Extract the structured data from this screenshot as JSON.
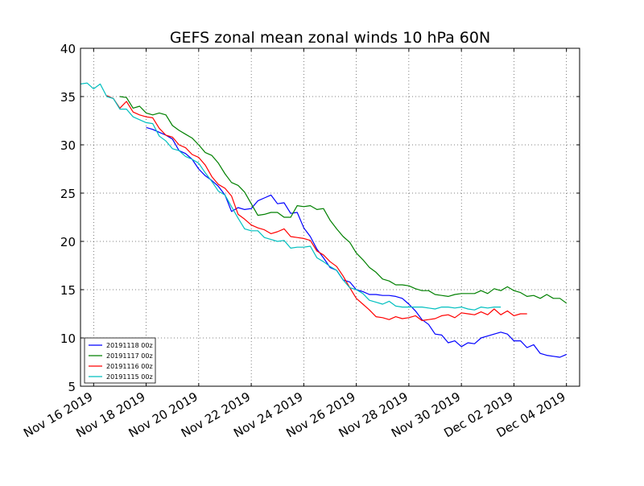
{
  "chart_data": {
    "type": "line",
    "title": "GEFS zonal mean zonal winds 10 hPa 60N",
    "xlabel": "",
    "ylabel": "",
    "ylim": [
      5,
      40
    ],
    "xlim": [
      "2019-11-15 12:00",
      "2019-12-04 12:00"
    ],
    "x_ticks": [
      "Nov 16 2019",
      "Nov 18 2019",
      "Nov 20 2019",
      "Nov 22 2019",
      "Nov 24 2019",
      "Nov 26 2019",
      "Nov 28 2019",
      "Nov 30 2019",
      "Dec 02 2019",
      "Dec 04 2019"
    ],
    "y_ticks": [
      5,
      10,
      15,
      20,
      25,
      30,
      35,
      40
    ],
    "grid": true,
    "legend_position": "lower-left",
    "series": [
      {
        "name": "20191118 00z",
        "color": "#0000ff",
        "start": "2019-11-18 00:00",
        "step_hours": 6,
        "values": [
          31.8,
          31.6,
          31.3,
          31.0,
          30.6,
          29.4,
          29.1,
          28.5,
          27.5,
          26.8,
          26.3,
          25.7,
          24.8,
          23.1,
          23.5,
          23.3,
          23.4,
          24.2,
          24.5,
          24.8,
          23.9,
          24.0,
          22.9,
          23.0,
          21.4,
          20.5,
          19.2,
          18.3,
          17.3,
          17.0,
          16.0,
          15.8,
          15.0,
          14.8,
          14.5,
          14.5,
          14.4,
          14.4,
          14.3,
          14.1,
          13.5,
          12.8,
          11.9,
          11.4,
          10.4,
          10.3,
          9.5,
          9.7,
          9.1,
          9.5,
          9.4,
          10.0,
          10.2,
          10.4,
          10.6,
          10.4,
          9.7,
          9.7,
          9.0,
          9.3,
          8.4,
          8.2,
          8.1,
          8.0,
          8.3
        ]
      },
      {
        "name": "20191117 00z",
        "color": "#008000",
        "start": "2019-11-17 00:00",
        "step_hours": 6,
        "values": [
          35.0,
          34.9,
          33.8,
          34.0,
          33.3,
          33.1,
          33.3,
          33.1,
          32.0,
          31.5,
          31.1,
          30.7,
          30.0,
          29.2,
          28.9,
          28.1,
          27.0,
          26.1,
          25.8,
          25.1,
          23.9,
          22.7,
          22.8,
          23.0,
          23.0,
          22.5,
          22.5,
          23.7,
          23.6,
          23.7,
          23.3,
          23.4,
          22.2,
          21.3,
          20.5,
          19.9,
          18.8,
          18.1,
          17.3,
          16.8,
          16.1,
          15.9,
          15.5,
          15.5,
          15.4,
          15.1,
          14.9,
          14.9,
          14.5,
          14.4,
          14.3,
          14.5,
          14.6,
          14.6,
          14.6,
          14.9,
          14.6,
          15.1,
          14.9,
          15.3,
          14.9,
          14.7,
          14.3,
          14.4,
          14.1,
          14.5,
          14.1,
          14.1,
          13.6
        ]
      },
      {
        "name": "20191116 00z",
        "color": "#ff0000",
        "start": "2019-11-16 12:00",
        "step_hours": 6,
        "values": [
          35.1,
          34.8,
          33.8,
          34.5,
          33.4,
          33.1,
          32.9,
          32.8,
          31.7,
          31.0,
          30.8,
          30.0,
          29.7,
          29.0,
          28.7,
          27.9,
          26.7,
          25.9,
          25.5,
          24.7,
          22.8,
          22.3,
          21.7,
          21.4,
          21.2,
          20.8,
          21.0,
          21.3,
          20.5,
          20.4,
          20.3,
          20.1,
          19.0,
          18.6,
          17.9,
          17.4,
          16.4,
          15.2,
          14.1,
          13.5,
          12.9,
          12.2,
          12.1,
          11.9,
          12.2,
          12.0,
          12.1,
          12.3,
          11.8,
          11.9,
          12.0,
          12.3,
          12.4,
          12.1,
          12.6,
          12.5,
          12.4,
          12.7,
          12.4,
          13.0,
          12.4,
          12.8,
          12.3,
          12.5,
          12.5
        ]
      },
      {
        "name": "20191115 00z",
        "color": "#00bfbf",
        "start": "2019-11-15 12:00",
        "step_hours": 6,
        "values": [
          36.3,
          36.4,
          35.8,
          36.3,
          35.0,
          34.8,
          33.7,
          33.7,
          32.9,
          32.6,
          32.3,
          32.2,
          30.9,
          30.4,
          29.6,
          29.4,
          28.8,
          28.5,
          28.1,
          27.1,
          26.2,
          25.2,
          24.8,
          23.6,
          22.4,
          21.3,
          21.1,
          21.1,
          20.4,
          20.2,
          20.0,
          20.1,
          19.3,
          19.4,
          19.4,
          19.5,
          18.3,
          17.9,
          17.4,
          17.0,
          16.0,
          15.2,
          15.0,
          14.6,
          13.9,
          13.7,
          13.5,
          13.8,
          13.3,
          13.2,
          13.2,
          13.2,
          13.2,
          13.1,
          13.0,
          13.2,
          13.2,
          13.1,
          13.2,
          13.0,
          12.9,
          13.2,
          13.1,
          13.2,
          13.2
        ]
      }
    ]
  }
}
